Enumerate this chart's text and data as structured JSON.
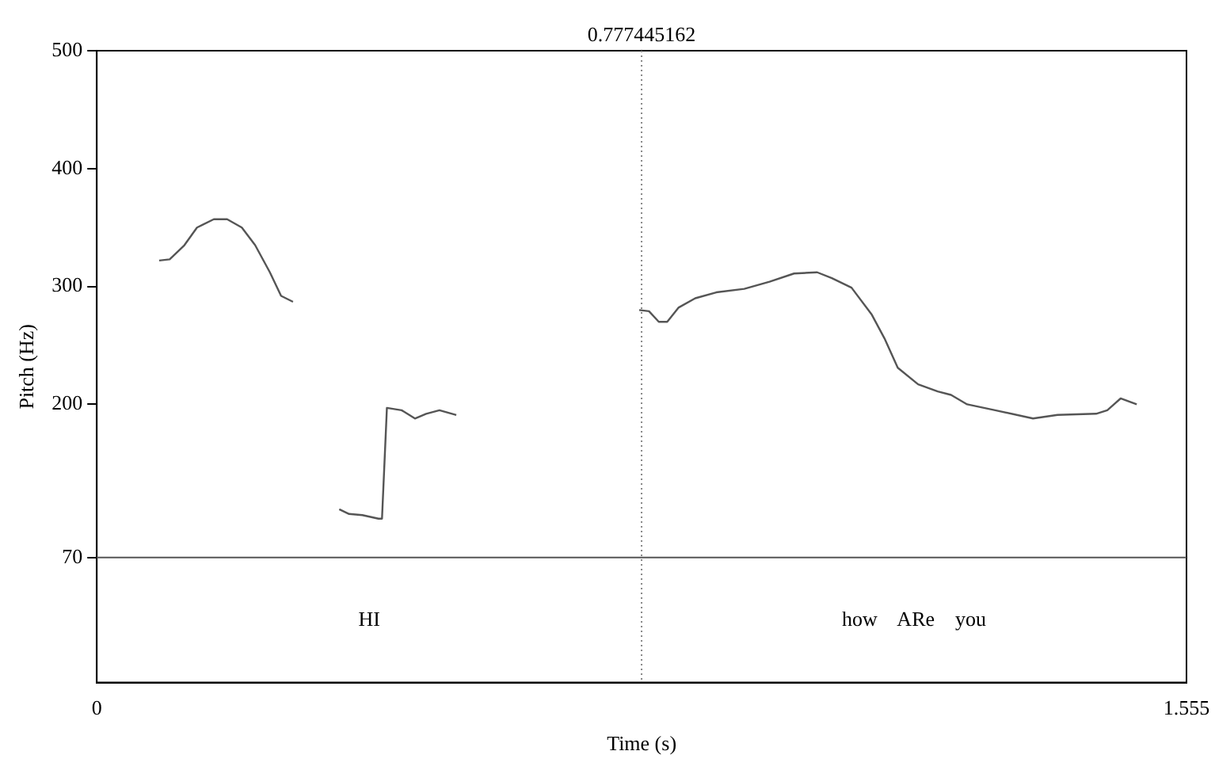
{
  "chart_data": {
    "type": "line",
    "xlabel": "Time (s)",
    "ylabel": "Pitch (Hz)",
    "xlim": [
      0,
      1.555
    ],
    "xticks": [
      0,
      1.555
    ],
    "ylim": [
      -36,
      500
    ],
    "yticks": [
      70,
      200,
      300,
      400,
      500
    ],
    "grid": false,
    "legend": false,
    "marker": "none",
    "line_style": "solid",
    "series": [
      {
        "color": "#555555",
        "x": [
          0.089,
          0.104,
          0.125,
          0.143,
          0.167,
          0.186,
          0.207,
          0.226,
          0.247,
          0.263,
          0.28,
          0.31,
          0.346,
          0.36,
          0.379,
          0.402,
          0.407,
          0.414,
          0.435,
          0.454,
          0.47,
          0.489,
          0.513,
          0.6,
          0.774,
          0.788,
          0.802,
          0.814,
          0.83,
          0.854,
          0.884,
          0.924,
          0.96,
          0.995,
          1.028,
          1.049,
          1.077,
          1.106,
          1.124,
          1.143,
          1.172,
          1.2,
          1.219,
          1.242,
          1.282,
          1.336,
          1.371,
          1.426,
          1.442,
          1.461,
          1.484
        ],
        "values": [
          322,
          323,
          335,
          350,
          357,
          357,
          350,
          335,
          312,
          292,
          287,
          null,
          111,
          107,
          106,
          103,
          103,
          197,
          195,
          188,
          192,
          195,
          191,
          null,
          280,
          279,
          270,
          270,
          282,
          290,
          295,
          298,
          304,
          311,
          312,
          307,
          299,
          276,
          256,
          231,
          217,
          211,
          208,
          200,
          195,
          188,
          191,
          192,
          195,
          205,
          200
        ]
      }
    ],
    "ref_lines": [
      {
        "axis": "x",
        "value": 0.777445162,
        "label": "0.777445162",
        "color": "#888888",
        "line_style": "dotted"
      },
      {
        "axis": "y",
        "value": 70,
        "label": null,
        "color": "#555555",
        "line_style": "solid"
      }
    ],
    "annotations": [
      "HI",
      "how    ARe    you"
    ]
  }
}
